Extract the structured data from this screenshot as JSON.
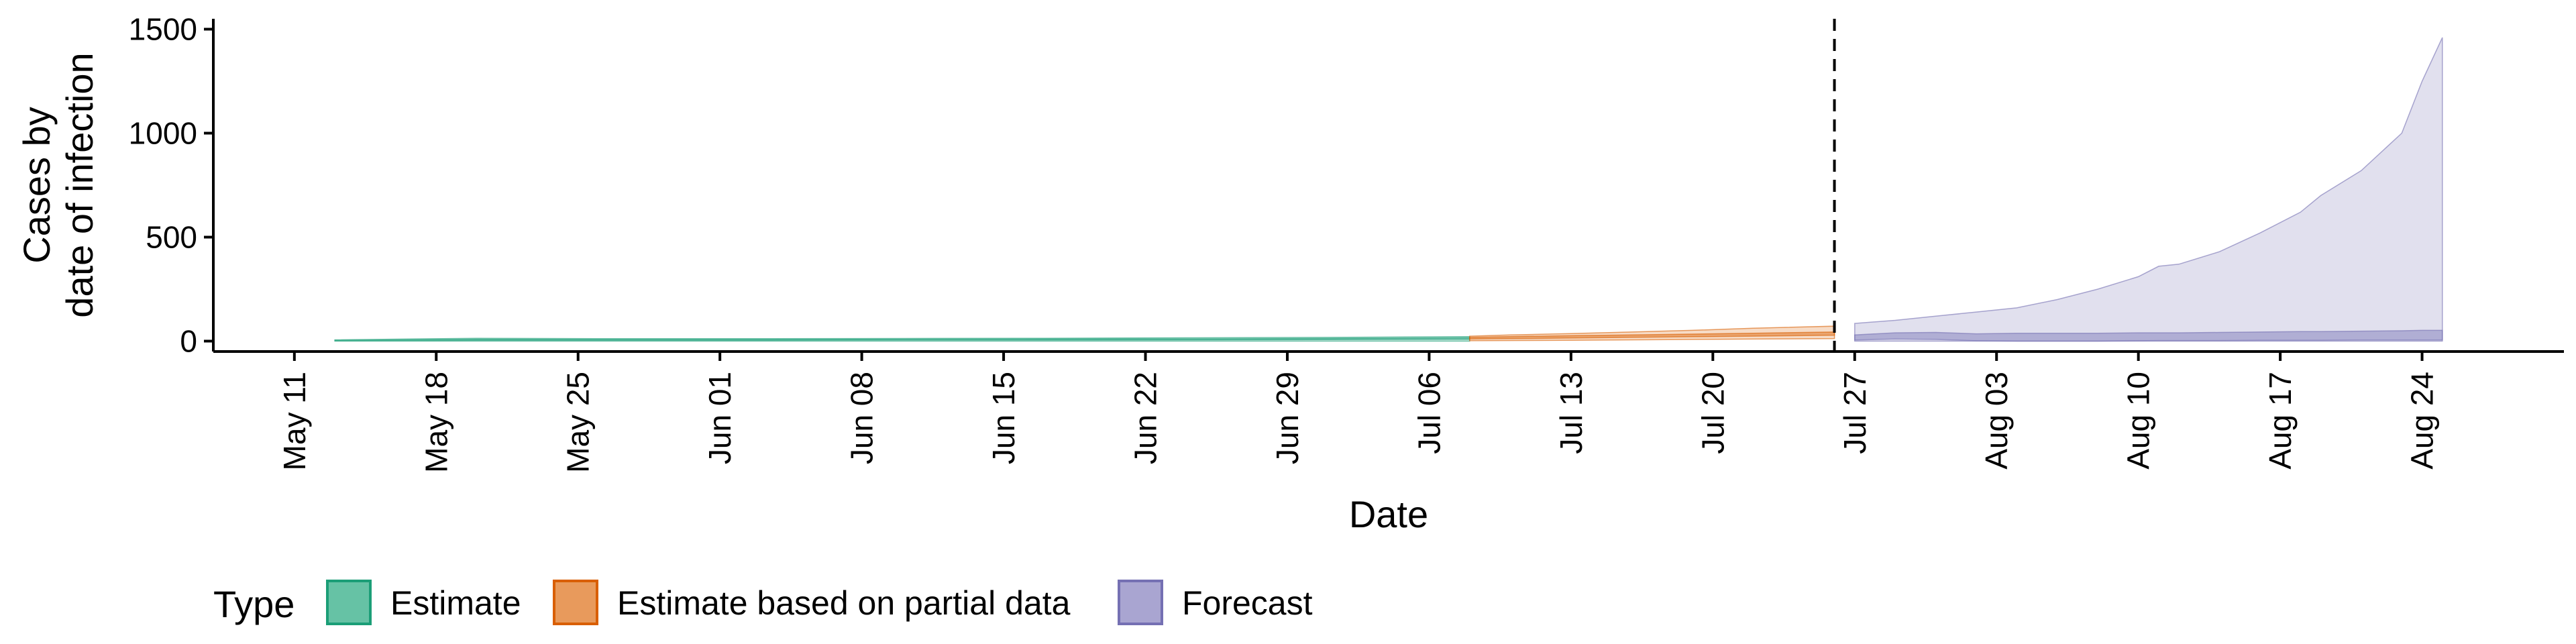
{
  "chart_data": {
    "type": "area",
    "title": "",
    "xlabel": "Date",
    "ylabel": [
      "Cases by",
      "date of infection"
    ],
    "ylim": [
      -50,
      1550
    ],
    "xlim": [
      "2020-05-07",
      "2020-08-31"
    ],
    "y_ticks": [
      0,
      500,
      1000,
      1500
    ],
    "y_tick_labels": [
      "0",
      "500",
      "1000",
      "1500"
    ],
    "x_ticks": [
      "2020-05-11",
      "2020-05-18",
      "2020-05-25",
      "2020-06-01",
      "2020-06-08",
      "2020-06-15",
      "2020-06-22",
      "2020-06-29",
      "2020-07-06",
      "2020-07-13",
      "2020-07-20",
      "2020-07-27",
      "2020-08-03",
      "2020-08-10",
      "2020-08-17",
      "2020-08-24"
    ],
    "x_tick_labels": [
      "May 11",
      "May 18",
      "May 25",
      "Jun 01",
      "Jun 08",
      "Jun 15",
      "Jun 22",
      "Jun 29",
      "Jul 06",
      "Jul 13",
      "Jul 20",
      "Jul 27",
      "Aug 03",
      "Aug 10",
      "Aug 17",
      "Aug 24"
    ],
    "vline": {
      "x": "2020-07-26",
      "style": "dashed"
    },
    "grid": false,
    "legend": {
      "title": "Type",
      "position": "bottom-left",
      "entries": [
        {
          "label": "Estimate",
          "fill": "#66c2a5",
          "stroke": "#1b9e77"
        },
        {
          "label": "Estimate based on partial data",
          "fill": "#e89a5c",
          "stroke": "#d95f02"
        },
        {
          "label": "Forecast",
          "fill": "#a9a5d1",
          "stroke": "#7570b3"
        }
      ]
    },
    "series": [
      {
        "name": "Estimate",
        "color": "#1b9e77",
        "x": [
          "2020-05-13",
          "2020-05-20",
          "2020-05-27",
          "2020-06-03",
          "2020-06-10",
          "2020-06-17",
          "2020-06-24",
          "2020-07-01",
          "2020-07-08"
        ],
        "outer_lower": [
          0,
          0,
          0,
          0,
          0,
          0,
          0,
          0,
          0
        ],
        "outer_upper": [
          6,
          14,
          12,
          12,
          13,
          14,
          16,
          18,
          22
        ],
        "inner_lower": [
          2,
          4,
          4,
          4,
          5,
          5,
          6,
          7,
          9
        ],
        "inner_upper": [
          4,
          9,
          8,
          8,
          9,
          10,
          11,
          13,
          16
        ]
      },
      {
        "name": "Estimate based on partial data",
        "color": "#d95f02",
        "x": [
          "2020-07-08",
          "2020-07-10",
          "2020-07-13",
          "2020-07-16",
          "2020-07-19",
          "2020-07-22",
          "2020-07-26"
        ],
        "outer_lower": [
          2,
          3,
          4,
          6,
          8,
          10,
          12
        ],
        "outer_upper": [
          24,
          30,
          36,
          44,
          52,
          62,
          72
        ],
        "inner_lower": [
          10,
          12,
          15,
          18,
          21,
          24,
          28
        ],
        "inner_upper": [
          18,
          22,
          26,
          30,
          34,
          38,
          44
        ]
      },
      {
        "name": "Forecast",
        "color": "#7570b3",
        "x": [
          "2020-07-27",
          "2020-07-29",
          "2020-07-31",
          "2020-08-02",
          "2020-08-04",
          "2020-08-06",
          "2020-08-08",
          "2020-08-10",
          "2020-08-11",
          "2020-08-12",
          "2020-08-14",
          "2020-08-16",
          "2020-08-18",
          "2020-08-19",
          "2020-08-21",
          "2020-08-23",
          "2020-08-24",
          "2020-08-25"
        ],
        "outer_lower": [
          0,
          0,
          0,
          0,
          0,
          0,
          0,
          0,
          0,
          0,
          0,
          0,
          0,
          0,
          0,
          0,
          0,
          0
        ],
        "outer_upper": [
          85,
          100,
          120,
          140,
          160,
          200,
          250,
          310,
          360,
          370,
          430,
          520,
          620,
          700,
          820,
          1000,
          1250,
          1460
        ],
        "inner_lower": [
          5,
          10,
          8,
          2,
          0,
          0,
          0,
          2,
          3,
          3,
          3,
          4,
          4,
          4,
          5,
          5,
          5,
          5
        ],
        "inner_upper": [
          30,
          40,
          42,
          35,
          38,
          38,
          38,
          40,
          40,
          40,
          42,
          44,
          46,
          46,
          48,
          50,
          52,
          52
        ]
      }
    ]
  }
}
